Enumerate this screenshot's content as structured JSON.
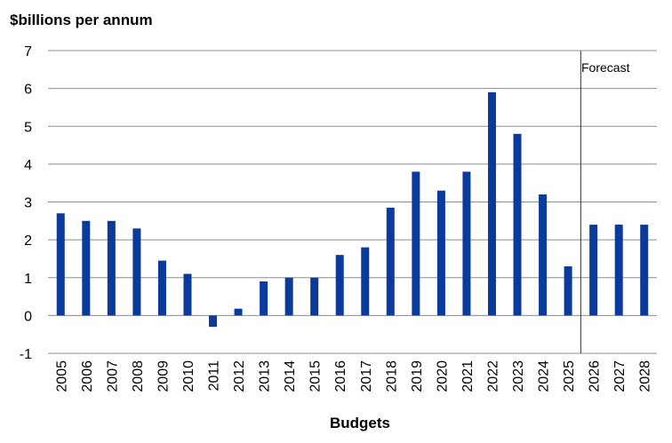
{
  "chart_data": {
    "type": "bar",
    "title": "$billions per annum",
    "xlabel": "Budgets",
    "ylabel": "",
    "ylim": [
      -1,
      7
    ],
    "yticks": [
      7,
      6,
      5,
      4,
      3,
      2,
      1,
      0,
      -1
    ],
    "grid": true,
    "categories": [
      "2005",
      "2006",
      "2007",
      "2008",
      "2009",
      "2010",
      "2011",
      "2012",
      "2013",
      "2014",
      "2015",
      "2016",
      "2017",
      "2018",
      "2019",
      "2020",
      "2021",
      "2022",
      "2023",
      "2024",
      "2025",
      "2026",
      "2027",
      "2028"
    ],
    "values": [
      2.7,
      2.5,
      2.5,
      2.3,
      1.45,
      1.1,
      -0.3,
      0.18,
      0.9,
      1.0,
      1.0,
      1.6,
      1.8,
      2.85,
      3.8,
      3.3,
      3.8,
      5.9,
      4.8,
      3.2,
      1.3,
      2.4,
      2.4,
      2.4
    ],
    "bar_color": "#0a3a9c",
    "annotation": {
      "text": "Forecast",
      "divider_between": [
        "2025",
        "2026"
      ]
    }
  }
}
